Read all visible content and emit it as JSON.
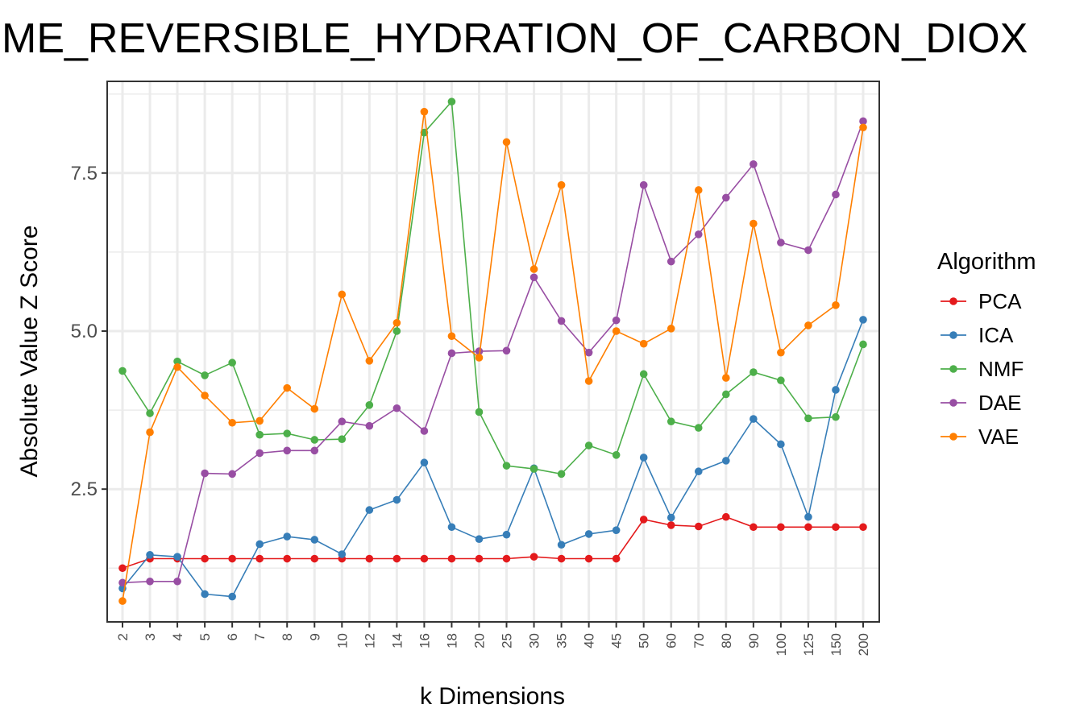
{
  "chart_data": {
    "type": "line",
    "title": "ME_REVERSIBLE_HYDRATION_OF_CARBON_DIOX",
    "xlabel": "k Dimensions",
    "ylabel": "Absolute Value Z Score",
    "categories": [
      "2",
      "3",
      "4",
      "5",
      "6",
      "7",
      "8",
      "9",
      "10",
      "12",
      "14",
      "16",
      "18",
      "20",
      "25",
      "30",
      "35",
      "40",
      "45",
      "50",
      "60",
      "70",
      "80",
      "90",
      "100",
      "125",
      "150",
      "200"
    ],
    "yticks": [
      2.5,
      5.0,
      7.5
    ],
    "ytick_labels": [
      "2.5",
      "5.0",
      "7.5"
    ],
    "ylim": [
      0.4,
      8.95
    ],
    "grid": true,
    "legend_title": "Algorithm",
    "legend_position": "right",
    "series": [
      {
        "name": "PCA",
        "color": "#e41a1c",
        "values": [
          1.25,
          1.4,
          1.4,
          1.4,
          1.4,
          1.4,
          1.4,
          1.4,
          1.4,
          1.4,
          1.4,
          1.4,
          1.4,
          1.4,
          1.4,
          1.43,
          1.4,
          1.4,
          1.4,
          2.02,
          1.93,
          1.91,
          2.06,
          1.9,
          1.9,
          1.9,
          1.9,
          1.9
        ]
      },
      {
        "name": "ICA",
        "color": "#377eb8",
        "values": [
          0.93,
          1.46,
          1.43,
          0.84,
          0.8,
          1.63,
          1.75,
          1.7,
          1.47,
          2.17,
          2.33,
          2.92,
          1.9,
          1.71,
          1.78,
          2.83,
          1.62,
          1.79,
          1.85,
          3.0,
          2.05,
          2.78,
          2.95,
          3.61,
          3.21,
          2.06,
          4.07,
          5.18
        ]
      },
      {
        "name": "NMF",
        "color": "#4daf4a",
        "values": [
          4.37,
          3.7,
          4.52,
          4.3,
          4.5,
          3.36,
          3.38,
          3.28,
          3.29,
          3.83,
          5.0,
          8.14,
          8.63,
          3.72,
          2.87,
          2.82,
          2.74,
          3.19,
          3.04,
          4.32,
          3.57,
          3.47,
          4.0,
          4.35,
          4.22,
          3.62,
          3.64,
          4.79
        ]
      },
      {
        "name": "DAE",
        "color": "#984ea3",
        "values": [
          1.02,
          1.04,
          1.04,
          2.75,
          2.74,
          3.07,
          3.11,
          3.11,
          3.57,
          3.5,
          3.78,
          3.42,
          4.65,
          4.68,
          4.69,
          5.85,
          5.16,
          4.66,
          5.17,
          7.31,
          6.1,
          6.53,
          7.11,
          7.64,
          6.4,
          6.28,
          7.16,
          8.32
        ]
      },
      {
        "name": "VAE",
        "color": "#ff7f00",
        "values": [
          0.73,
          3.4,
          4.43,
          3.98,
          3.55,
          3.58,
          4.1,
          3.77,
          5.58,
          4.53,
          5.13,
          8.47,
          4.92,
          4.58,
          7.99,
          5.98,
          7.31,
          4.21,
          5.0,
          4.8,
          5.04,
          7.23,
          4.26,
          6.7,
          4.66,
          5.09,
          5.41,
          8.22
        ]
      }
    ]
  }
}
